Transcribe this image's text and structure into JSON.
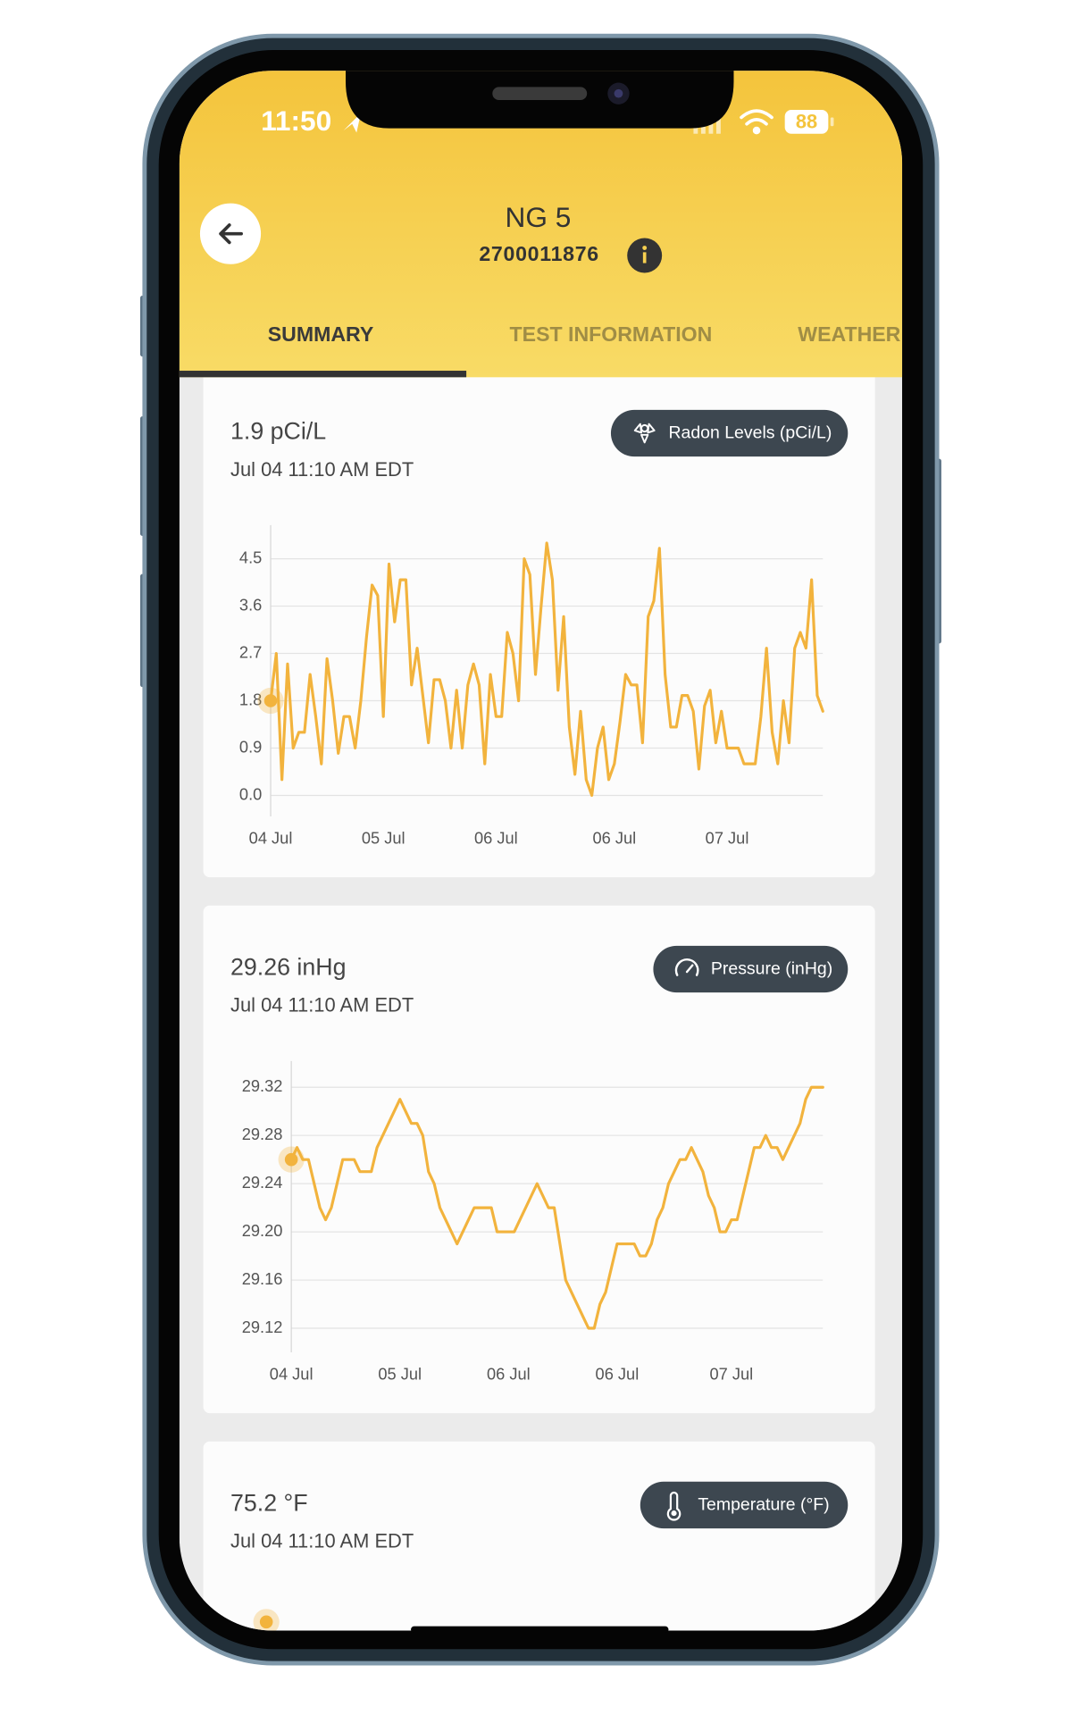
{
  "status_bar": {
    "time": "11:50",
    "battery": "88"
  },
  "header": {
    "title": "NG 5",
    "serial": "2700011876"
  },
  "tabs": [
    "SUMMARY",
    "TEST INFORMATION",
    "WEATHER"
  ],
  "cards": [
    {
      "reading": "1.9 pCi/L",
      "timestamp": "Jul 04 11:10 AM EDT",
      "badge": "Radon Levels (pCi/L)",
      "chart": {
        "type": "line",
        "color": "#f2b33d",
        "values": [
          1.8,
          2.7,
          0.3,
          2.5,
          0.9,
          1.2,
          1.2,
          2.3,
          1.5,
          0.6,
          2.6,
          1.8,
          0.8,
          1.5,
          1.5,
          0.9,
          1.8,
          3.0,
          4.0,
          3.8,
          1.5,
          4.4,
          3.3,
          4.1,
          4.1,
          2.1,
          2.8,
          1.9,
          1.0,
          2.2,
          2.2,
          1.8,
          0.9,
          2.0,
          0.9,
          2.1,
          2.5,
          2.1,
          0.6,
          2.3,
          1.5,
          1.5,
          3.1,
          2.7,
          1.8,
          4.5,
          4.2,
          2.3,
          3.6,
          4.8,
          4.1,
          2.0,
          3.4,
          1.3,
          0.4,
          1.6,
          0.3,
          0.0,
          0.9,
          1.3,
          0.3,
          0.6,
          1.4,
          2.3,
          2.1,
          2.1,
          1.0,
          3.4,
          3.7,
          4.7,
          2.3,
          1.3,
          1.3,
          1.9,
          1.9,
          1.6,
          0.5,
          1.7,
          2.0,
          1.0,
          1.6,
          0.9,
          0.9,
          0.9,
          0.6,
          0.6,
          0.6,
          1.5,
          2.8,
          1.2,
          0.6,
          1.8,
          1.0,
          2.8,
          3.1,
          2.8,
          4.1,
          1.9,
          1.6
        ],
        "xticks": [
          {
            "value": 0,
            "label": "04 Jul"
          },
          {
            "value": 20,
            "label": "05 Jul"
          },
          {
            "value": 40,
            "label": "06 Jul"
          },
          {
            "value": 61,
            "label": "06 Jul"
          },
          {
            "value": 81,
            "label": "07 Jul"
          }
        ],
        "ylim": [
          -0.4,
          5.1
        ],
        "yticks": [
          {
            "value": 0,
            "label": "0.0"
          },
          0.9,
          1.8,
          2.7,
          3.6,
          4.5
        ],
        "grid": true
      }
    },
    {
      "reading": "29.26 inHg",
      "timestamp": "Jul 04 11:10 AM EDT",
      "badge": "Pressure (inHg)",
      "chart": {
        "type": "line",
        "color": "#f2b33d",
        "values": [
          29.26,
          29.27,
          29.26,
          29.26,
          29.24,
          29.22,
          29.21,
          29.22,
          29.24,
          29.26,
          29.26,
          29.26,
          29.25,
          29.25,
          29.25,
          29.27,
          29.28,
          29.29,
          29.3,
          29.31,
          29.3,
          29.29,
          29.29,
          29.28,
          29.25,
          29.24,
          29.22,
          29.21,
          29.2,
          29.19,
          29.2,
          29.21,
          29.22,
          29.22,
          29.22,
          29.22,
          29.2,
          29.2,
          29.2,
          29.2,
          29.21,
          29.22,
          29.23,
          29.24,
          29.23,
          29.22,
          29.22,
          29.19,
          29.16,
          29.15,
          29.14,
          29.13,
          29.12,
          29.12,
          29.14,
          29.15,
          29.17,
          29.19,
          29.19,
          29.19,
          29.19,
          29.18,
          29.18,
          29.19,
          29.21,
          29.22,
          29.24,
          29.25,
          29.26,
          29.26,
          29.27,
          29.26,
          29.25,
          29.23,
          29.22,
          29.2,
          29.2,
          29.21,
          29.21,
          29.23,
          29.25,
          29.27,
          29.27,
          29.28,
          29.27,
          29.27,
          29.26,
          29.27,
          29.28,
          29.29,
          29.31,
          29.32,
          29.32,
          29.32
        ],
        "xticks": [
          {
            "value": 0,
            "label": "04 Jul"
          },
          {
            "value": 19,
            "label": "05 Jul"
          },
          {
            "value": 38,
            "label": "06 Jul"
          },
          {
            "value": 57,
            "label": "06 Jul"
          },
          {
            "value": 77,
            "label": "07 Jul"
          }
        ],
        "ylim": [
          29.1,
          29.34
        ],
        "yticks": [
          29.12,
          29.16,
          {
            "value": 29.2,
            "label": "29.20"
          },
          29.24,
          29.28,
          29.32
        ],
        "grid": true
      }
    },
    {
      "reading": "75.2 °F",
      "timestamp": "Jul 04 11:10 AM EDT",
      "badge": "Temperature (°F)"
    }
  ]
}
